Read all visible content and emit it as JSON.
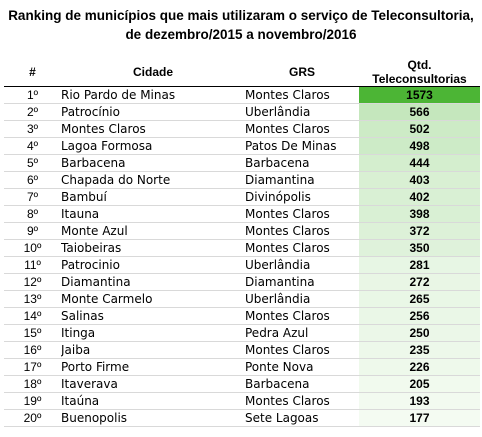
{
  "title": {
    "line1": "Ranking de municípios que mais utilizaram o serviço de Teleconsultoria,",
    "line2": "de dezembro/2015 a novembro/2016"
  },
  "table": {
    "headers": {
      "rank": "#",
      "city": "Cidade",
      "grs": "GRS",
      "qtd": "Qtd. Teleconsultorias"
    },
    "colors": {
      "max": "#4cb535",
      "min": "#f4fbf2"
    },
    "rows": [
      {
        "rank": "1º",
        "city": "Rio Pardo de Minas",
        "grs": "Montes Claros",
        "qtd": 1573
      },
      {
        "rank": "2º",
        "city": "Patrocínio",
        "grs": "Uberlândia",
        "qtd": 566
      },
      {
        "rank": "3º",
        "city": "Montes Claros",
        "grs": "Montes Claros",
        "qtd": 502
      },
      {
        "rank": "4º",
        "city": "Lagoa Formosa",
        "grs": "Patos De Minas",
        "qtd": 498
      },
      {
        "rank": "5º",
        "city": "Barbacena",
        "grs": "Barbacena",
        "qtd": 444
      },
      {
        "rank": "6º",
        "city": "Chapada do Norte",
        "grs": "Diamantina",
        "qtd": 403
      },
      {
        "rank": "7º",
        "city": "Bambuí",
        "grs": "Divinópolis",
        "qtd": 402
      },
      {
        "rank": "8º",
        "city": "Itauna",
        "grs": "Montes Claros",
        "qtd": 398
      },
      {
        "rank": "9º",
        "city": "Monte Azul",
        "grs": "Montes Claros",
        "qtd": 372
      },
      {
        "rank": "10º",
        "city": "Taiobeiras",
        "grs": "Montes Claros",
        "qtd": 350
      },
      {
        "rank": "11º",
        "city": "Patrocinio",
        "grs": "Uberlândia",
        "qtd": 281
      },
      {
        "rank": "12º",
        "city": "Diamantina",
        "grs": "Diamantina",
        "qtd": 272
      },
      {
        "rank": "13º",
        "city": "Monte Carmelo",
        "grs": "Uberlândia",
        "qtd": 265
      },
      {
        "rank": "14º",
        "city": "Salinas",
        "grs": "Montes Claros",
        "qtd": 256
      },
      {
        "rank": "15º",
        "city": "Itinga",
        "grs": "Pedra Azul",
        "qtd": 250
      },
      {
        "rank": "16º",
        "city": "Jaiba",
        "grs": "Montes Claros",
        "qtd": 235
      },
      {
        "rank": "17º",
        "city": "Porto Firme",
        "grs": "Ponte Nova",
        "qtd": 226
      },
      {
        "rank": "18º",
        "city": "Itaverava",
        "grs": "Barbacena",
        "qtd": 205
      },
      {
        "rank": "19º",
        "city": "Itaúna",
        "grs": "Montes Claros",
        "qtd": 193
      },
      {
        "rank": "20º",
        "city": "Buenopolis",
        "grs": "Sete Lagoas",
        "qtd": 177
      }
    ]
  }
}
